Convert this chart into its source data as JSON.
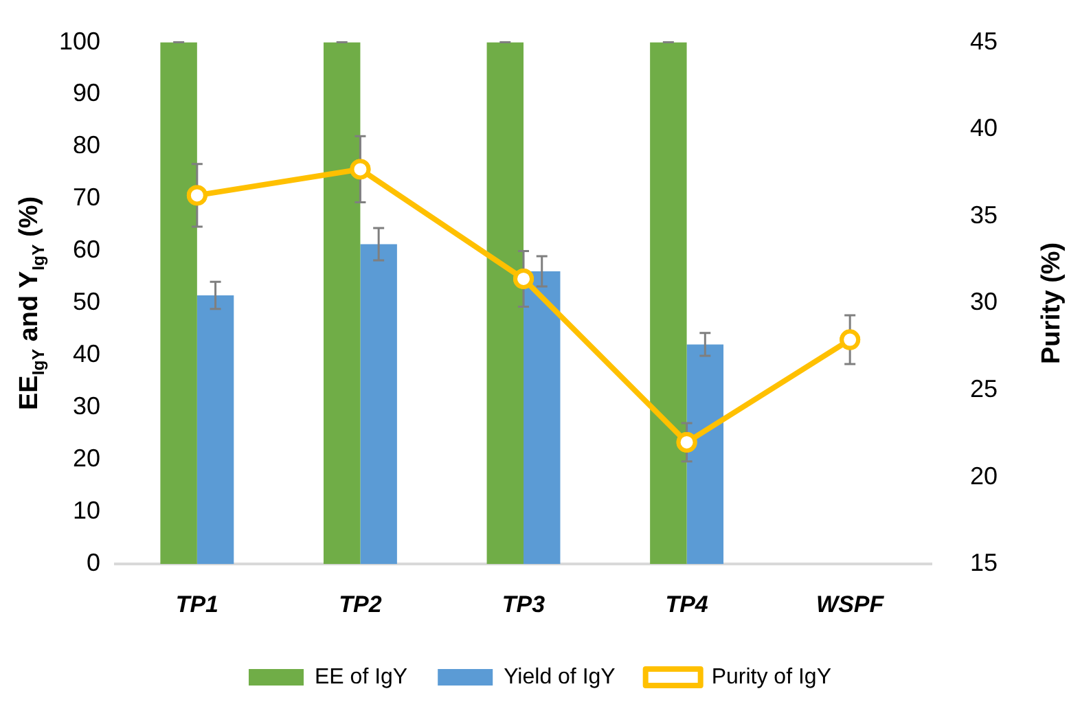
{
  "chart_data": {
    "type": "bar",
    "categories": [
      "TP1",
      "TP2",
      "TP3",
      "TP4",
      "WSPF"
    ],
    "ylabel": "EE$_{IgY}$ and Y$_{IgY}$ (%)",
    "y2label": "Purity (%)",
    "ylim": [
      0,
      100
    ],
    "yticks": [
      0,
      10,
      20,
      30,
      40,
      50,
      60,
      70,
      80,
      90,
      100
    ],
    "y2lim": [
      15,
      45
    ],
    "y2ticks": [
      15,
      20,
      25,
      30,
      35,
      40,
      45
    ],
    "grid": false,
    "legend": "bottom",
    "marker": "circle",
    "series": [
      {
        "name": "EE of IgY",
        "color": "#70ad47",
        "values": [
          100,
          100,
          100,
          100,
          null
        ],
        "errors": [
          0,
          0,
          0,
          0,
          null
        ]
      },
      {
        "name": "Yield of IgY",
        "color": "#5b9bd5",
        "values": [
          51.5,
          61.3,
          56.1,
          42.1,
          null
        ],
        "errors": [
          2.6,
          3.1,
          2.9,
          2.2,
          null
        ]
      },
      {
        "name": "Purity of IgY",
        "type": "line",
        "axis": "y2",
        "color": "#ffc000",
        "values": [
          36.2,
          37.7,
          31.4,
          22.0,
          27.9
        ],
        "errors": [
          1.8,
          1.9,
          1.6,
          1.1,
          1.4
        ]
      }
    ]
  }
}
